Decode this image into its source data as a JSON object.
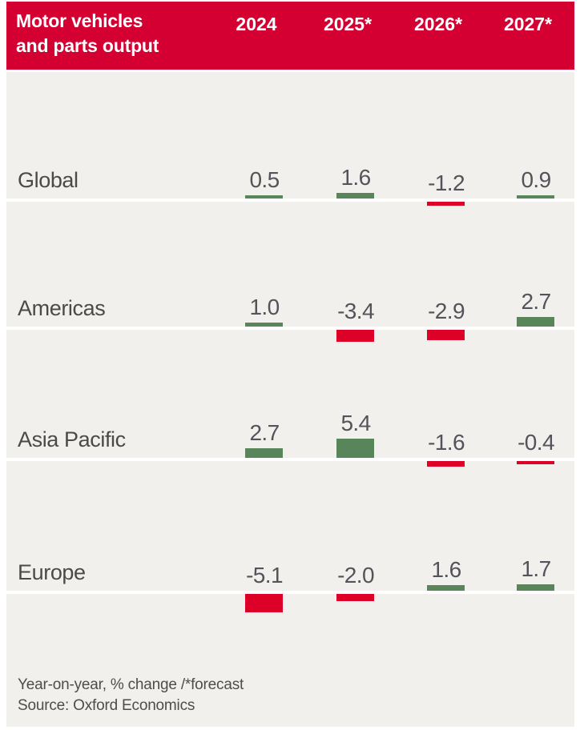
{
  "colors": {
    "banner-bg": "#d50032",
    "banner-text": "#ffffff",
    "body-bg": "#f1f0ed",
    "page-bg": "#ffffff",
    "positive": "#588559",
    "negative": "#dd0127",
    "baseline": "#ffffff",
    "label-text": "#4c4a47",
    "value-text": "#55535a",
    "footer-text": "#4f4d4a"
  },
  "header": {
    "title_line1": "Motor vehicles",
    "title_line2": "and parts output",
    "columns": [
      "2024",
      "2025*",
      "2026*",
      "2027*"
    ]
  },
  "chart_data": {
    "type": "bar",
    "title": "Motor vehicles and parts output",
    "categories": [
      "2024",
      "2025*",
      "2026*",
      "2027*"
    ],
    "series": [
      {
        "name": "Global",
        "values": [
          0.5,
          1.6,
          -1.2,
          0.9
        ]
      },
      {
        "name": "Americas",
        "values": [
          1.0,
          -3.4,
          -2.9,
          2.7
        ]
      },
      {
        "name": "Asia Pacific",
        "values": [
          2.7,
          5.4,
          -1.6,
          -0.4
        ]
      },
      {
        "name": "Europe",
        "values": [
          -5.1,
          -2.0,
          1.6,
          1.7
        ]
      }
    ],
    "unit": "Year-on-year, % change",
    "baseline": 0,
    "value_labels": true,
    "legend": "none",
    "grid": false,
    "positive_color": "#588559",
    "negative_color": "#dd0127"
  },
  "footer": {
    "note": "Year-on-year, % change /*forecast",
    "source": "Source: Oxford Economics"
  }
}
